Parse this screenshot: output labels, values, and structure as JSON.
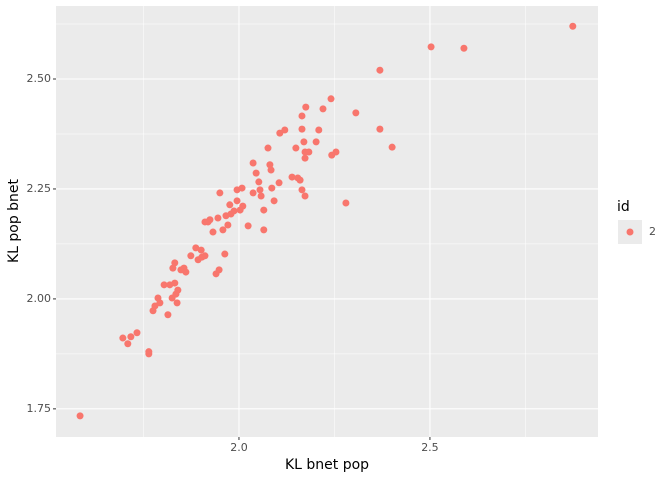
{
  "chart_data": {
    "type": "scatter",
    "xlabel": "KL bnet pop",
    "ylabel": "KL pop bnet",
    "legend_title": "id",
    "legend": "right",
    "grid": true,
    "xlim": [
      1.521,
      2.94
    ],
    "ylim": [
      1.686,
      2.666
    ],
    "xticks": [
      {
        "value": 2,
        "label": "2.0"
      },
      {
        "value": 2.5,
        "label": "2.5"
      }
    ],
    "yticks": [
      1.75,
      {
        "value": 2,
        "label": "2.00"
      },
      2.25,
      {
        "value": 2.5,
        "label": "2.50"
      }
    ],
    "series": [
      {
        "name": "2",
        "color": "#F8766D",
        "x": [
          1.584,
          1.696,
          1.709,
          1.717,
          1.733,
          1.764,
          1.764,
          1.775,
          1.78,
          1.788,
          1.793,
          1.804,
          1.814,
          1.819,
          1.825,
          1.827,
          1.832,
          1.835,
          1.838,
          1.84,
          1.832,
          1.848,
          1.856,
          1.861,
          1.874,
          1.887,
          1.893,
          1.901,
          1.903,
          1.911,
          1.919,
          1.911,
          1.924,
          1.932,
          1.94,
          1.948,
          1.945,
          1.95,
          1.958,
          1.963,
          1.966,
          1.971,
          1.976,
          1.979,
          1.987,
          1.995,
          1.995,
          2.003,
          2.008,
          2.01,
          2.024,
          2.037,
          2.037,
          2.045,
          2.052,
          2.055,
          2.058,
          2.065,
          2.065,
          2.076,
          2.081,
          2.084,
          2.086,
          2.092,
          2.105,
          2.107,
          2.12,
          2.139,
          2.149,
          2.154,
          2.16,
          2.165,
          2.173,
          2.165,
          2.165,
          2.17,
          2.173,
          2.173,
          2.175,
          2.183,
          2.202,
          2.209,
          2.22,
          2.241,
          2.243,
          2.254,
          2.28,
          2.306,
          2.369,
          2.369,
          2.401,
          2.503,
          2.589,
          2.874
        ],
        "values": [
          1.734,
          1.911,
          1.898,
          1.914,
          1.923,
          1.88,
          1.875,
          1.973,
          1.984,
          2.002,
          1.991,
          2.032,
          1.964,
          2.032,
          2.002,
          2.07,
          2.082,
          2.011,
          1.991,
          2.02,
          2.036,
          2.066,
          2.07,
          2.061,
          2.098,
          2.116,
          2.089,
          2.111,
          2.095,
          2.175,
          2.175,
          2.098,
          2.18,
          2.152,
          2.057,
          2.066,
          2.184,
          2.241,
          2.157,
          2.102,
          2.189,
          2.168,
          2.214,
          2.193,
          2.2,
          2.248,
          2.223,
          2.202,
          2.252,
          2.211,
          2.166,
          2.309,
          2.241,
          2.286,
          2.266,
          2.248,
          2.234,
          2.157,
          2.202,
          2.343,
          2.305,
          2.293,
          2.252,
          2.223,
          2.264,
          2.377,
          2.384,
          2.277,
          2.343,
          2.275,
          2.27,
          2.248,
          2.234,
          2.386,
          2.416,
          2.357,
          2.334,
          2.32,
          2.436,
          2.334,
          2.357,
          2.384,
          2.432,
          2.455,
          2.327,
          2.334,
          2.218,
          2.423,
          2.52,
          2.386,
          2.345,
          2.573,
          2.57,
          2.62
        ]
      }
    ]
  }
}
